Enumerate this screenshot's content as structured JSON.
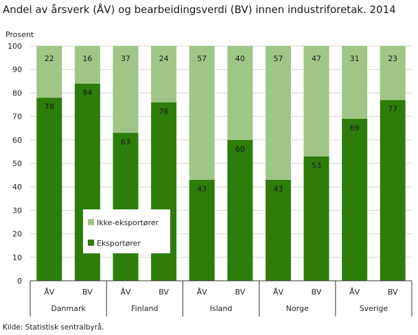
{
  "chart_data": {
    "type": "bar",
    "stacked": true,
    "title": "Andel av årsverk (ÅV) og bearbeidingsverdi (BV) innen industriforetak. 2014",
    "ylabel": "Prosent",
    "xlabel": "",
    "ylim": [
      0,
      100
    ],
    "yticks": [
      0,
      10,
      20,
      30,
      40,
      50,
      60,
      70,
      80,
      90,
      100
    ],
    "grid": true,
    "legend_position": "bottom-left",
    "groups": [
      "Danmark",
      "Finland",
      "Island",
      "Norge",
      "Sverige"
    ],
    "categories": [
      "ÅV",
      "BV",
      "ÅV",
      "BV",
      "ÅV",
      "BV",
      "ÅV",
      "BV",
      "ÅV",
      "BV"
    ],
    "series": [
      {
        "name": "Eksportører",
        "color": "#2e7d0b",
        "values": [
          78,
          84,
          63,
          76,
          43,
          60,
          43,
          53,
          69,
          77
        ]
      },
      {
        "name": "Ikke-eksportører",
        "color": "#9fc686",
        "values": [
          22,
          16,
          37,
          24,
          57,
          40,
          57,
          47,
          31,
          23
        ]
      }
    ],
    "legend_order": [
      "Ikke-eksportører",
      "Eksportører"
    ]
  },
  "source": "Kilde: Statistisk sentralbyrå."
}
